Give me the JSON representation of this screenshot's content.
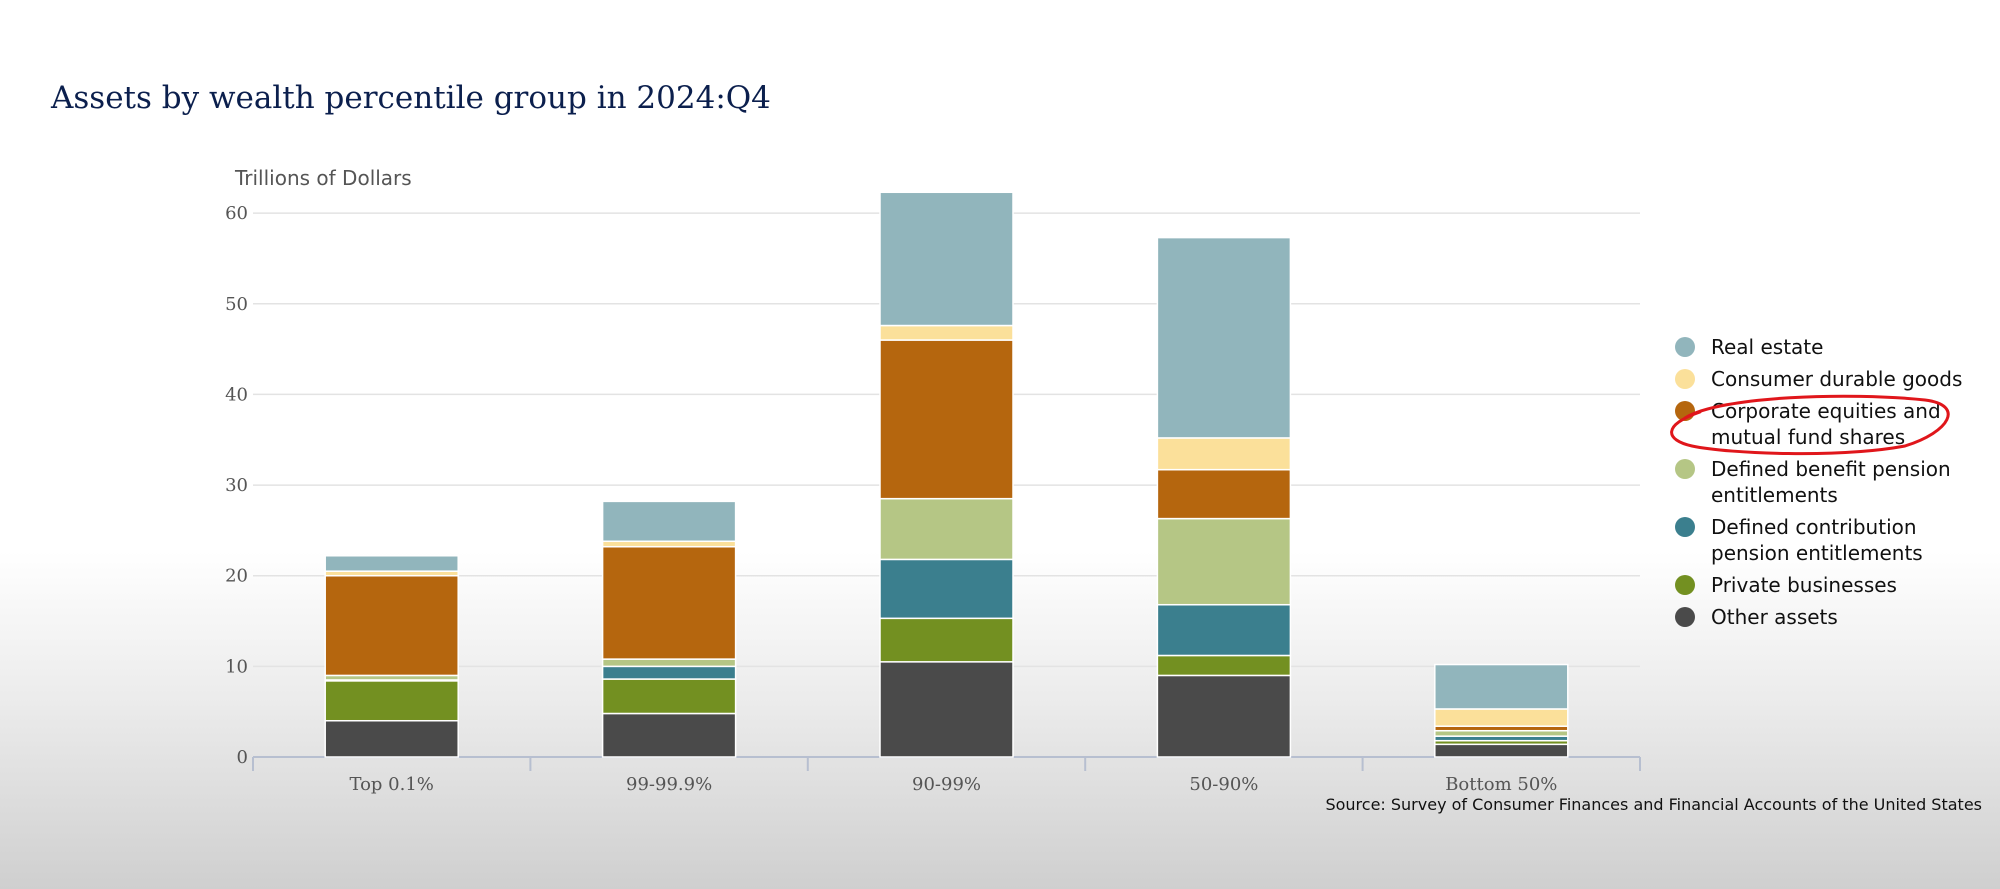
{
  "chart_data": {
    "type": "bar",
    "stacked": true,
    "title": "Assets by wealth percentile group in 2024:Q4",
    "ylabel": "Trillions of Dollars",
    "xlabel": "",
    "ylim": [
      0,
      62
    ],
    "yticks": [
      0,
      10,
      20,
      30,
      40,
      50,
      60
    ],
    "grid": true,
    "legend_position": "right",
    "categories": [
      "Top 0.1%",
      "99-99.9%",
      "90-99%",
      "50-90%",
      "Bottom 50%"
    ],
    "series": [
      {
        "name": "Other assets",
        "color": "#4a4a4a",
        "values": [
          4.0,
          4.8,
          10.5,
          9.0,
          1.4
        ]
      },
      {
        "name": "Private businesses",
        "color": "#739021",
        "values": [
          4.4,
          3.8,
          4.8,
          2.2,
          0.4
        ]
      },
      {
        "name": "Defined contribution pension entitlements",
        "color": "#3b7f8e",
        "values": [
          0.1,
          1.4,
          6.5,
          5.6,
          0.5
        ]
      },
      {
        "name": "Defined benefit pension entitlements",
        "color": "#b5c685",
        "values": [
          0.5,
          0.8,
          6.7,
          9.5,
          0.6
        ]
      },
      {
        "name": "Corporate equities and mutual fund shares",
        "color": "#b5660e",
        "values": [
          11.0,
          12.4,
          17.5,
          5.4,
          0.5
        ]
      },
      {
        "name": "Consumer durable goods",
        "color": "#fbe09a",
        "values": [
          0.5,
          0.6,
          1.6,
          3.5,
          1.9
        ]
      },
      {
        "name": "Real estate",
        "color": "#91b5bc",
        "values": [
          1.7,
          4.4,
          14.7,
          22.1,
          4.9
        ]
      }
    ],
    "legend_order": [
      "Real estate",
      "Consumer durable goods",
      "Corporate equities and mutual fund shares",
      "Defined benefit pension entitlements",
      "Defined contribution pension entitlements",
      "Private businesses",
      "Other assets"
    ],
    "source": "Source: Survey of Consumer Finances and Financial Accounts of the United States",
    "annotation": {
      "type": "hand-drawn ellipse",
      "color": "#e0161b",
      "target": "Corporate equities and mutual fund shares"
    }
  }
}
